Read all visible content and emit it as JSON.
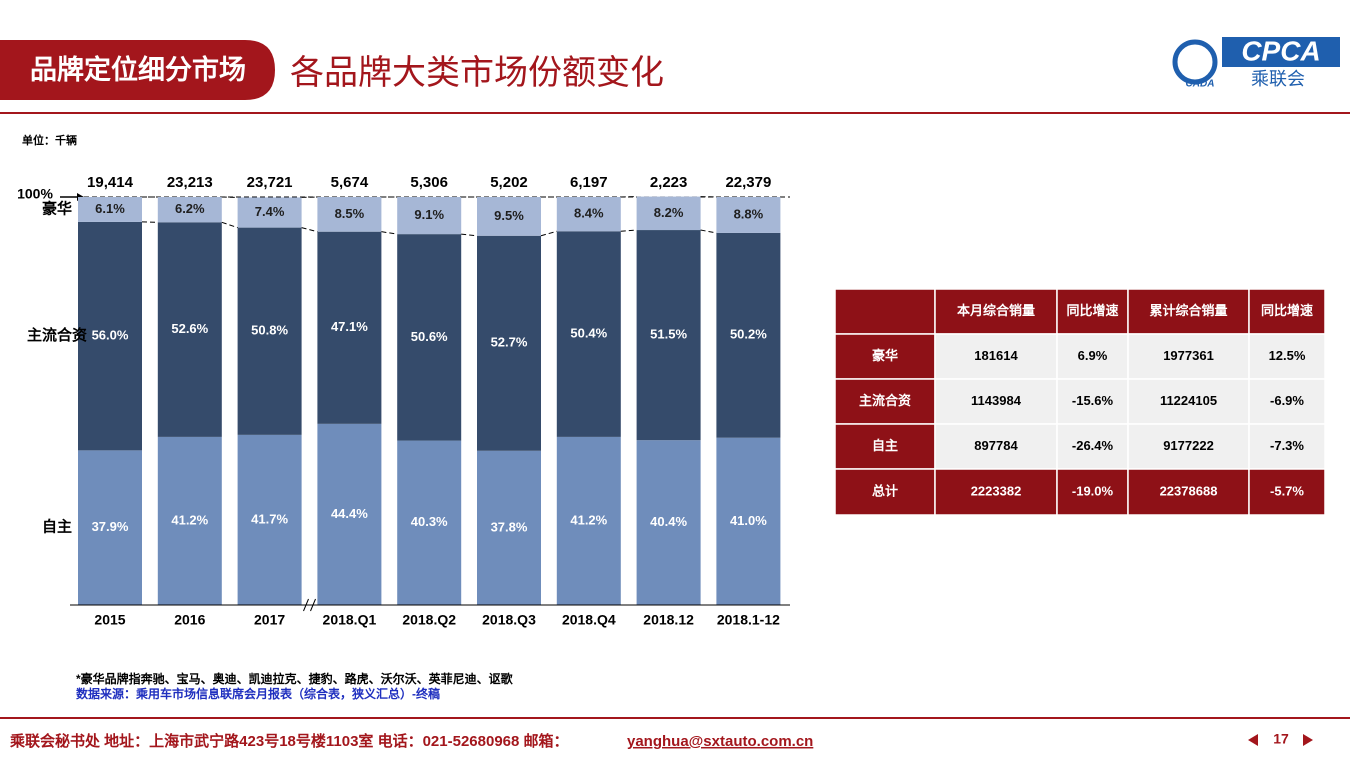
{
  "header": {
    "tag": "品牌定位细分市场",
    "title": "各品牌大类市场份额变化",
    "logo_text": "CPCA",
    "logo_sub": "乘联会",
    "logo_small": "CADA"
  },
  "chart_data": {
    "type": "stacked_bar_100",
    "unit_note": "单位：千辆",
    "categories": [
      "2015",
      "2016",
      "2017",
      "2018.Q1",
      "2018.Q2",
      "2018.Q3",
      "2018.Q4",
      "2018.12",
      "2018.1-12"
    ],
    "totals": {
      "values": [
        19414,
        23213,
        23721,
        5674,
        5306,
        5202,
        6197,
        2223,
        22379
      ],
      "value_labels": [
        "19,414",
        "23,213",
        "23,721",
        "5,674",
        "5,306",
        "5,202",
        "6,197",
        "2,223",
        "22,379"
      ]
    },
    "series": [
      {
        "name": "豪华",
        "color": "#a6b7d6",
        "label_color": "#1f1f1f",
        "values": [
          6.1,
          6.2,
          7.4,
          8.5,
          9.1,
          9.5,
          8.4,
          8.2,
          8.8
        ],
        "value_labels": [
          "6.1%",
          "6.2%",
          "7.4%",
          "8.5%",
          "9.1%",
          "9.5%",
          "8.4%",
          "8.2%",
          "8.8%"
        ]
      },
      {
        "name": "主流合资",
        "color": "#354b6b",
        "label_color": "#ffffff",
        "values": [
          56.0,
          52.6,
          50.8,
          47.1,
          50.6,
          52.7,
          50.4,
          51.5,
          50.2
        ],
        "value_labels": [
          "56.0%",
          "52.6%",
          "50.8%",
          "47.1%",
          "50.6%",
          "52.7%",
          "50.4%",
          "51.5%",
          "50.2%"
        ]
      },
      {
        "name": "自主",
        "color": "#6f8dbb",
        "label_color": "#ffffff",
        "values": [
          37.9,
          41.2,
          41.7,
          44.4,
          40.3,
          37.8,
          41.2,
          40.4,
          41.0
        ],
        "value_labels": [
          "37.9%",
          "41.2%",
          "41.7%",
          "44.4%",
          "40.3%",
          "37.8%",
          "41.2%",
          "40.4%",
          "41.0%"
        ]
      }
    ],
    "ylim": [
      0,
      100
    ],
    "yticks": [
      {
        "value": 100,
        "label": "100%"
      }
    ],
    "footnote": "*豪华品牌指奔驰、宝马、奥迪、凯迪拉克、捷豹、路虎、沃尔沃、英菲尼迪、讴歌",
    "source": "数据来源：乘用车市场信息联席会月报表（综合表，狭义汇总）-终稿"
  },
  "table": {
    "header": [
      "本月综合销量",
      "同比增速",
      "累计综合销量",
      "同比增速"
    ],
    "rows": [
      [
        "豪华",
        "181614",
        "6.9%",
        "1977361",
        "12.5%"
      ],
      [
        "主流合资",
        "1143984",
        "-15.6%",
        "11224105",
        "-6.9%"
      ],
      [
        "自主",
        "897784",
        "-26.4%",
        "9177222",
        "-7.3%"
      ],
      [
        "总计",
        "2223382",
        "-19.0%",
        "22378688",
        "-5.7%"
      ]
    ]
  },
  "footer": {
    "address": "乘联会秘书处  地址：上海市武宁路423号18号楼1103室  电话：021-52680968  邮箱：",
    "email": "yanghua@sxtauto.com.cn",
    "page": "17"
  }
}
